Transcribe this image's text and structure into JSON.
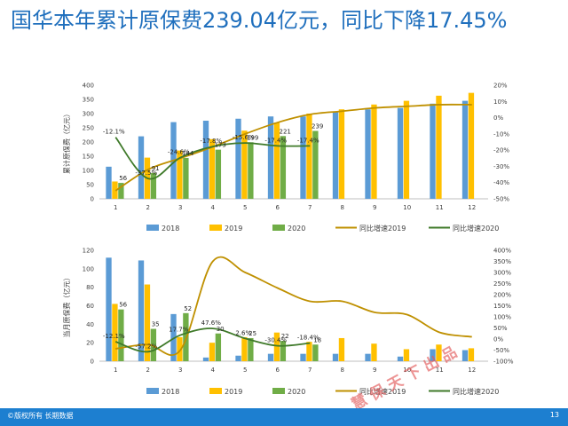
{
  "slide": {
    "title": "国华本年累计原保费239.04亿元，同比下降17.45%",
    "footer_left": "©版权所有 长期数据",
    "page_number": "13",
    "watermark": "慧 保 天 下 出 品",
    "colors": {
      "title": "#1f6fbd",
      "footer_bg": "#1d7fd0"
    }
  },
  "chart_data": [
    {
      "type": "bar",
      "id": "cumulative",
      "ylabel": "累计原保费（亿元）",
      "categories": [
        "1",
        "2",
        "3",
        "4",
        "5",
        "6",
        "7",
        "8",
        "9",
        "10",
        "11",
        "12"
      ],
      "ylim": [
        0,
        400
      ],
      "yticks": [
        0,
        50,
        100,
        150,
        200,
        250,
        300,
        350,
        400
      ],
      "y2lim": [
        -50,
        20
      ],
      "y2ticks": [
        "20%",
        "10%",
        "0%",
        "-10%",
        "-20%",
        "-30%",
        "-40%",
        "-50%"
      ],
      "y2tick_values": [
        20,
        10,
        0,
        -10,
        -20,
        -30,
        -40,
        -50
      ],
      "series": [
        {
          "name": "2018",
          "color": "#5b9bd5",
          "values": [
            113,
            220,
            270,
            275,
            282,
            290,
            290,
            305,
            315,
            320,
            335,
            345
          ]
        },
        {
          "name": "2019",
          "color": "#ffc000",
          "values": [
            61,
            145,
            170,
            210,
            240,
            268,
            300,
            315,
            332,
            345,
            363,
            373
          ]
        },
        {
          "name": "2020",
          "color": "#70ad47",
          "values": [
            56,
            91,
            144,
            173,
            199,
            221,
            239,
            null,
            null,
            null,
            null,
            null
          ]
        }
      ],
      "lines": [
        {
          "name": "同比增速2019",
          "color": "#bf9000",
          "axis": "right",
          "values": [
            -45,
            -32,
            -25,
            -18,
            -10,
            -3,
            2,
            4,
            6,
            7,
            8,
            8
          ]
        },
        {
          "name": "同比增速2020",
          "color": "#3f7a2a",
          "axis": "right",
          "values": [
            -12.1,
            -37.5,
            -24.6,
            -17.8,
            -15.6,
            -17.4,
            -17.4,
            null,
            null,
            null,
            null,
            null
          ]
        }
      ],
      "data_labels": [
        {
          "i": 0,
          "text": "56",
          "target": "bar"
        },
        {
          "i": 1,
          "text": "91",
          "target": "bar"
        },
        {
          "i": 2,
          "text": "144",
          "target": "bar"
        },
        {
          "i": 3,
          "text": "173",
          "target": "bar"
        },
        {
          "i": 4,
          "text": "199",
          "target": "bar"
        },
        {
          "i": 5,
          "text": "221",
          "target": "bar"
        },
        {
          "i": 6,
          "text": "239",
          "target": "bar"
        },
        {
          "i": 0,
          "text": "-12.1%",
          "target": "line"
        },
        {
          "i": 1,
          "text": "-37.5%",
          "target": "line"
        },
        {
          "i": 2,
          "text": "-24.6%",
          "target": "line"
        },
        {
          "i": 3,
          "text": "-17.8%",
          "target": "line"
        },
        {
          "i": 4,
          "text": "-15.6%",
          "target": "line"
        },
        {
          "i": 5,
          "text": "-17.4%",
          "target": "line"
        },
        {
          "i": 6,
          "text": "-17.4%",
          "target": "line"
        }
      ],
      "legend": [
        "2018",
        "2019",
        "2020",
        "同比增速2019",
        "同比增速2020"
      ],
      "legend_position": "bottom",
      "grid": false
    },
    {
      "type": "bar",
      "id": "monthly",
      "ylabel": "当月原保费（亿元）",
      "categories": [
        "1",
        "2",
        "3",
        "4",
        "5",
        "6",
        "7",
        "8",
        "9",
        "10",
        "11",
        "12"
      ],
      "ylim": [
        0,
        120
      ],
      "yticks": [
        0,
        20,
        40,
        60,
        80,
        100,
        120
      ],
      "y2lim": [
        -100,
        400
      ],
      "y2ticks": [
        "400%",
        "350%",
        "300%",
        "250%",
        "200%",
        "150%",
        "100%",
        "50%",
        "0%",
        "-50%",
        "-100%"
      ],
      "y2tick_values": [
        400,
        350,
        300,
        250,
        200,
        150,
        100,
        50,
        0,
        -50,
        -100
      ],
      "series": [
        {
          "name": "2018",
          "color": "#5b9bd5",
          "values": [
            112,
            109,
            51,
            4,
            6,
            8,
            8,
            8,
            8,
            5,
            13,
            12
          ]
        },
        {
          "name": "2019",
          "color": "#ffc000",
          "values": [
            62,
            83,
            26,
            20,
            26,
            31,
            21,
            25,
            19,
            13,
            18,
            14
          ]
        },
        {
          "name": "2020",
          "color": "#70ad47",
          "values": [
            56,
            35,
            52,
            30,
            25,
            22,
            18,
            null,
            null,
            null,
            null,
            null
          ]
        }
      ],
      "lines": [
        {
          "name": "同比增速2019",
          "color": "#bf9000",
          "axis": "right",
          "values": [
            -44,
            -25,
            -50,
            350,
            300,
            230,
            170,
            170,
            120,
            110,
            30,
            10
          ]
        },
        {
          "name": "同比增速2020",
          "color": "#3f7a2a",
          "axis": "right",
          "values": [
            -12.1,
            -57.2,
            17.7,
            47.6,
            2.6,
            -30.4,
            -18.4,
            null,
            null,
            null,
            null,
            null
          ]
        }
      ],
      "data_labels": [
        {
          "i": 0,
          "text": "56",
          "target": "bar"
        },
        {
          "i": 1,
          "text": "35",
          "target": "bar"
        },
        {
          "i": 2,
          "text": "52",
          "target": "bar"
        },
        {
          "i": 3,
          "text": "30",
          "target": "bar"
        },
        {
          "i": 4,
          "text": "25",
          "target": "bar"
        },
        {
          "i": 5,
          "text": "22",
          "target": "bar"
        },
        {
          "i": 6,
          "text": "18",
          "target": "bar"
        },
        {
          "i": 0,
          "text": "-12.1%",
          "target": "line"
        },
        {
          "i": 1,
          "text": "-57.2%",
          "target": "line"
        },
        {
          "i": 2,
          "text": "17.7%",
          "target": "line"
        },
        {
          "i": 3,
          "text": "47.6%",
          "target": "line"
        },
        {
          "i": 4,
          "text": "2.6%",
          "target": "line"
        },
        {
          "i": 5,
          "text": "-30.4%",
          "target": "line"
        },
        {
          "i": 6,
          "text": "-18.4%",
          "target": "line"
        }
      ],
      "legend": [
        "2018",
        "2019",
        "2020",
        "同比增速2019",
        "同比增速2020"
      ],
      "legend_position": "bottom",
      "grid": false
    }
  ]
}
